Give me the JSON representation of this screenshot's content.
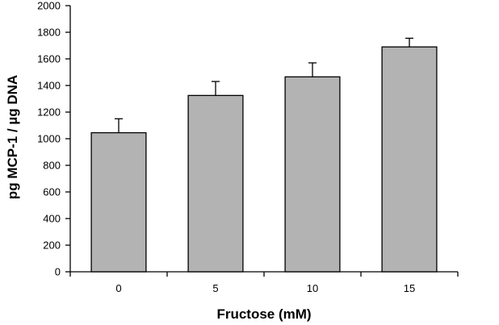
{
  "chart_data": {
    "type": "bar",
    "categories": [
      "0",
      "5",
      "10",
      "15"
    ],
    "values": [
      1045,
      1325,
      1465,
      1690
    ],
    "errors": [
      105,
      105,
      105,
      65
    ],
    "title": "",
    "xlabel": "Fructose (mM)",
    "ylabel": "pg MCP-1 / µg DNA",
    "ylim": [
      0,
      2000
    ],
    "yticks": [
      0,
      200,
      400,
      600,
      800,
      1000,
      1200,
      1400,
      1600,
      1800,
      2000
    ],
    "grid": false,
    "legend": "none",
    "bar_color": "#b3b3b3",
    "edge_color": "#000000"
  }
}
